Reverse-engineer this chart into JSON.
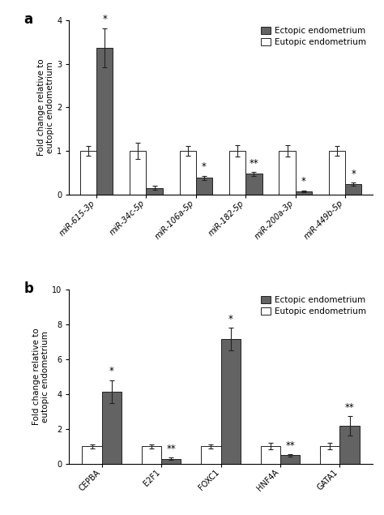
{
  "panel_a": {
    "categories": [
      "miR-615-3p",
      "miR-34c-5p",
      "miR-106a-5p",
      "miR-182-5p",
      "miR-200a-3p",
      "miR-449b-5p"
    ],
    "ectopic_vals": [
      3.38,
      0.15,
      0.38,
      0.47,
      0.07,
      0.23
    ],
    "eutopic_vals": [
      1.0,
      1.0,
      1.0,
      1.0,
      1.0,
      1.0
    ],
    "ectopic_err": [
      0.45,
      0.04,
      0.05,
      0.04,
      0.02,
      0.04
    ],
    "eutopic_err": [
      0.12,
      0.18,
      0.12,
      0.13,
      0.13,
      0.12
    ],
    "sig_ect": [
      "*",
      null,
      "*",
      "**",
      "*",
      "*"
    ],
    "sig_eut": [
      null,
      null,
      null,
      null,
      null,
      null
    ],
    "ylim": [
      0,
      4
    ],
    "yticks": [
      0,
      1,
      2,
      3,
      4
    ],
    "ylabel": "Fold change relative to\neutopic endometrium",
    "legend_labels": [
      "Ectopic endometrium",
      "Eutopic endometrium"
    ],
    "italic_xticks": true
  },
  "panel_b": {
    "categories": [
      "CEPBA",
      "E2F1",
      "FOXC1",
      "HNF4A",
      "GATA1"
    ],
    "ectopic_vals": [
      4.15,
      0.28,
      7.15,
      0.47,
      2.18
    ],
    "eutopic_vals": [
      1.0,
      1.0,
      1.0,
      1.0,
      1.0
    ],
    "ectopic_err": [
      0.65,
      0.05,
      0.65,
      0.05,
      0.55
    ],
    "eutopic_err": [
      0.12,
      0.12,
      0.12,
      0.18,
      0.18
    ],
    "sig_ect": [
      "*",
      "**",
      "*",
      "**",
      "**"
    ],
    "sig_eut": [
      null,
      null,
      null,
      null,
      null
    ],
    "ylim": [
      0,
      10
    ],
    "yticks": [
      0,
      2,
      4,
      6,
      8,
      10
    ],
    "ylabel": "Fold change relative to\neutopic endometrium",
    "legend_labels": [
      "Ectopic endometrium",
      "Eutopic endometrium"
    ],
    "italic_xticks": false
  },
  "ectopic_color": "#636363",
  "eutopic_color": "#ffffff",
  "bar_edge_color": "#222222",
  "bar_width": 0.33,
  "background_color": "#ffffff",
  "fontsize_axis_label": 7.5,
  "fontsize_tick": 7,
  "fontsize_legend": 7.5,
  "fontsize_sig": 8.5,
  "fontsize_panel_label": 12
}
